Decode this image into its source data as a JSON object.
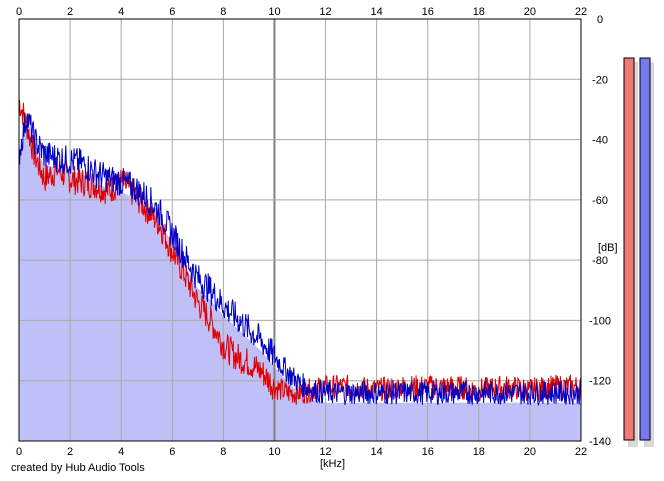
{
  "credit_text": "created by Hub Audio Tools",
  "chart_data": {
    "type": "line",
    "x_unit_label": "[kHz]",
    "y_unit_label": "[dB]",
    "xlim": [
      0,
      22
    ],
    "ylim": [
      -140,
      0
    ],
    "x_ticks": [
      "0",
      "2",
      "4",
      "6",
      "8",
      "10",
      "12",
      "14",
      "16",
      "18",
      "20",
      "22"
    ],
    "y_ticks": [
      "0",
      "-20",
      "-40",
      "-60",
      "-80",
      "-100",
      "-120",
      "-140"
    ],
    "grid": true,
    "fill_color": "#c0c0f8",
    "series": [
      {
        "color": "#e00000",
        "x": [
          0,
          0.3,
          0.6,
          1.0,
          1.5,
          2.0,
          2.5,
          3.0,
          3.5,
          4.0,
          4.5,
          5.0,
          5.5,
          6.0,
          6.5,
          7.0,
          7.5,
          8.0,
          8.5,
          9.0,
          9.5,
          10.0,
          10.5,
          11.0,
          11.5,
          12.0,
          13.0,
          14.0,
          15.0,
          16.0,
          17.0,
          18.0,
          19.0,
          20.0,
          21.0,
          22.0
        ],
        "y": [
          -27,
          -35,
          -45,
          -53,
          -50,
          -53,
          -54,
          -55,
          -57,
          -54,
          -58,
          -63,
          -68,
          -77,
          -85,
          -94,
          -100,
          -108,
          -112,
          -114,
          -117,
          -122,
          -124,
          -124,
          -123,
          -122,
          -122,
          -123,
          -122,
          -122,
          -122,
          -123,
          -122,
          -123,
          -122,
          -122
        ]
      },
      {
        "color": "#0000c8",
        "x": [
          0,
          0.3,
          0.6,
          1.0,
          1.5,
          2.0,
          2.5,
          3.0,
          3.5,
          4.0,
          4.5,
          5.0,
          5.5,
          6.0,
          6.5,
          7.0,
          7.5,
          8.0,
          8.5,
          9.0,
          9.5,
          10.0,
          10.5,
          11.0,
          11.5,
          12.0,
          13.0,
          14.0,
          15.0,
          16.0,
          17.0,
          18.0,
          19.0,
          20.0,
          21.0,
          22.0
        ],
        "y": [
          -45,
          -32,
          -40,
          -45,
          -46,
          -47,
          -48,
          -51,
          -53,
          -54,
          -56,
          -59,
          -64,
          -71,
          -79,
          -86,
          -90,
          -95,
          -99,
          -103,
          -107,
          -112,
          -117,
          -121,
          -123,
          -124,
          -124,
          -124,
          -124,
          -124,
          -124,
          -124,
          -124,
          -124,
          -124,
          -124
        ]
      }
    ],
    "level_meters": [
      {
        "color": "#f07878"
      },
      {
        "color": "#7878f0"
      }
    ]
  }
}
